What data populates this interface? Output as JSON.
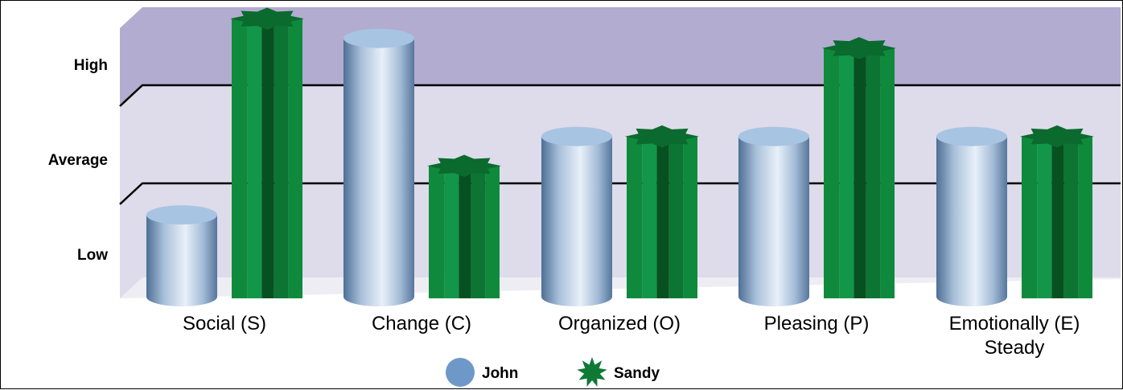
{
  "chart_data": {
    "type": "bar",
    "categories": [
      "Social (S)",
      "Change (C)",
      "Organized (O)",
      "Pleasing (P)",
      "Emotionally (E) Steady"
    ],
    "category_lines": [
      [
        "Social (S)"
      ],
      [
        "Change (C)"
      ],
      [
        "Organized (O)"
      ],
      [
        "Pleasing (P)"
      ],
      [
        "Emotionally (E)",
        "Steady"
      ]
    ],
    "y_tick_labels": [
      "Low",
      "Average",
      "High"
    ],
    "ylim": [
      0,
      3
    ],
    "bands": {
      "high_color": "#b1acd0",
      "low_color": "#dedbea"
    },
    "series": [
      {
        "name": "John",
        "shape": "cylinder",
        "color": "#8aa8c8",
        "values": [
          0.85,
          2.65,
          1.65,
          1.65,
          1.65
        ]
      },
      {
        "name": "Sandy",
        "shape": "star-column",
        "color": "#0e7a35",
        "values": [
          2.85,
          1.35,
          1.65,
          2.55,
          1.65
        ]
      }
    ],
    "legend": {
      "position": "bottom-center"
    },
    "grid": true
  }
}
